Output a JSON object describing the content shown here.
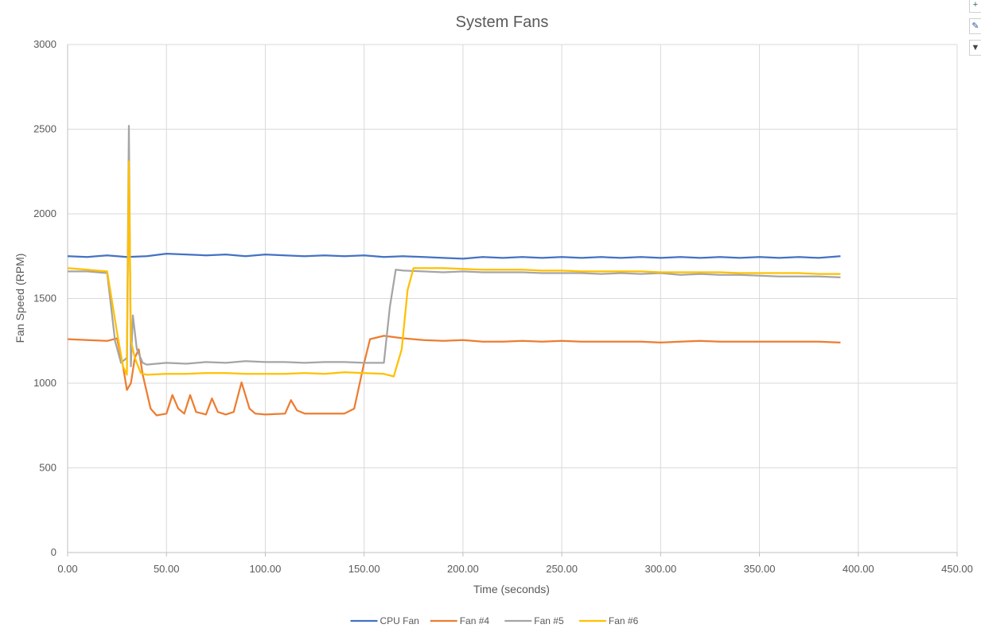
{
  "chart_data": {
    "type": "line",
    "title": "System Fans",
    "xlabel": "Time (seconds)",
    "ylabel": "Fan Speed (RPM)",
    "xlim": [
      0,
      450
    ],
    "ylim": [
      0,
      3000
    ],
    "xticks": [
      "0.00",
      "50.00",
      "100.00",
      "150.00",
      "200.00",
      "250.00",
      "300.00",
      "350.00",
      "400.00",
      "450.00"
    ],
    "yticks": [
      "0",
      "500",
      "1000",
      "1500",
      "2000",
      "2500",
      "3000"
    ],
    "grid": true,
    "legend_position": "bottom",
    "series": [
      {
        "name": "CPU Fan",
        "color": "#4472C4",
        "x": [
          0,
          10,
          20,
          30,
          40,
          50,
          60,
          70,
          80,
          90,
          100,
          110,
          120,
          130,
          140,
          150,
          160,
          170,
          180,
          190,
          200,
          210,
          220,
          230,
          240,
          250,
          260,
          270,
          280,
          290,
          300,
          310,
          320,
          330,
          340,
          350,
          360,
          370,
          380,
          391
        ],
        "y": [
          1750,
          1745,
          1755,
          1745,
          1750,
          1765,
          1760,
          1755,
          1760,
          1750,
          1760,
          1755,
          1750,
          1755,
          1750,
          1755,
          1745,
          1750,
          1745,
          1740,
          1735,
          1745,
          1740,
          1745,
          1740,
          1745,
          1740,
          1745,
          1740,
          1745,
          1740,
          1745,
          1740,
          1745,
          1740,
          1745,
          1740,
          1745,
          1740,
          1750
        ]
      },
      {
        "name": "Fan #4",
        "color": "#ED7D31",
        "x": [
          0,
          10,
          20,
          25,
          28,
          30,
          32,
          34,
          36,
          38,
          42,
          45,
          50,
          53,
          56,
          59,
          62,
          65,
          70,
          73,
          76,
          80,
          84,
          88,
          92,
          95,
          100,
          110,
          113,
          116,
          120,
          130,
          140,
          145,
          150,
          153,
          160,
          170,
          180,
          190,
          200,
          210,
          220,
          230,
          240,
          250,
          260,
          270,
          280,
          290,
          300,
          310,
          320,
          330,
          340,
          350,
          360,
          370,
          380,
          391
        ],
        "y": [
          1260,
          1255,
          1250,
          1265,
          1100,
          960,
          1000,
          1150,
          1200,
          1050,
          850,
          810,
          820,
          930,
          850,
          820,
          930,
          830,
          815,
          910,
          830,
          815,
          830,
          1005,
          850,
          820,
          815,
          820,
          900,
          840,
          820,
          820,
          820,
          850,
          1120,
          1260,
          1280,
          1265,
          1255,
          1250,
          1255,
          1245,
          1245,
          1250,
          1245,
          1250,
          1245,
          1245,
          1245,
          1245,
          1240,
          1245,
          1250,
          1245,
          1245,
          1245,
          1245,
          1245,
          1245,
          1240
        ]
      },
      {
        "name": "Fan #5",
        "color": "#A5A5A5",
        "x": [
          0,
          10,
          20,
          24,
          27,
          30,
          31,
          32,
          33,
          35,
          38,
          40,
          50,
          60,
          70,
          80,
          90,
          100,
          110,
          120,
          130,
          140,
          150,
          160,
          163,
          166,
          170,
          180,
          190,
          200,
          210,
          220,
          230,
          240,
          250,
          260,
          270,
          280,
          290,
          300,
          310,
          320,
          330,
          340,
          350,
          360,
          370,
          380,
          391
        ],
        "y": [
          1660,
          1660,
          1650,
          1250,
          1120,
          1150,
          2520,
          1100,
          1400,
          1200,
          1120,
          1110,
          1120,
          1115,
          1125,
          1120,
          1130,
          1125,
          1125,
          1120,
          1125,
          1125,
          1120,
          1120,
          1450,
          1670,
          1665,
          1660,
          1655,
          1660,
          1655,
          1655,
          1655,
          1650,
          1650,
          1650,
          1645,
          1650,
          1645,
          1650,
          1640,
          1645,
          1640,
          1640,
          1635,
          1630,
          1630,
          1630,
          1625
        ]
      },
      {
        "name": "Fan #6",
        "color": "#FFC000",
        "x": [
          0,
          10,
          20,
          25,
          28,
          30,
          31,
          32,
          34,
          37,
          40,
          50,
          60,
          70,
          80,
          90,
          100,
          110,
          120,
          130,
          140,
          150,
          160,
          165,
          169,
          172,
          175,
          180,
          190,
          200,
          210,
          220,
          230,
          240,
          250,
          260,
          270,
          280,
          290,
          300,
          310,
          320,
          330,
          340,
          350,
          360,
          370,
          380,
          391
        ],
        "y": [
          1680,
          1670,
          1660,
          1300,
          1100,
          1050,
          2310,
          1250,
          1150,
          1060,
          1050,
          1055,
          1055,
          1060,
          1060,
          1055,
          1055,
          1055,
          1060,
          1055,
          1065,
          1060,
          1055,
          1040,
          1200,
          1550,
          1680,
          1680,
          1680,
          1675,
          1670,
          1670,
          1670,
          1665,
          1665,
          1660,
          1660,
          1660,
          1660,
          1655,
          1655,
          1655,
          1655,
          1650,
          1650,
          1650,
          1650,
          1645,
          1645
        ]
      }
    ]
  },
  "side_buttons": [
    {
      "name": "chart-elements-button",
      "glyph": "+",
      "color": "#217346"
    },
    {
      "name": "chart-styles-button",
      "glyph": "✎",
      "color": "#2B579A"
    },
    {
      "name": "chart-filters-button",
      "glyph": "▼",
      "color": "#444444"
    }
  ]
}
